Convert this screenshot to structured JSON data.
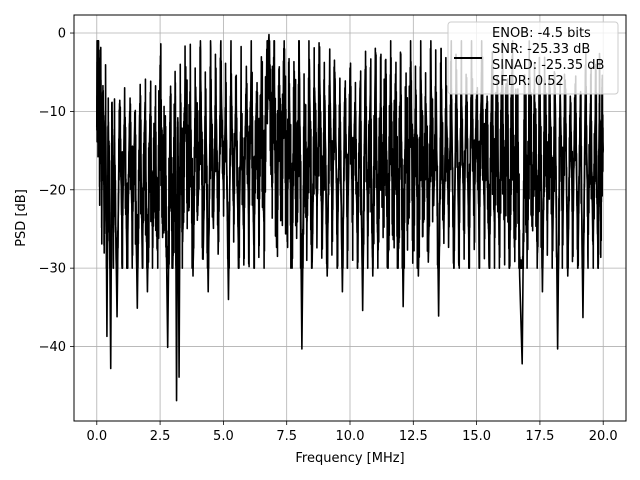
{
  "chart_data": {
    "type": "line",
    "xlabel": "Frequency [MHz]",
    "ylabel": "PSD [dB]",
    "xlim": [
      -0.9,
      20.9
    ],
    "ylim": [
      -49.5,
      2.3
    ],
    "xticks": [
      0.0,
      2.5,
      5.0,
      7.5,
      10.0,
      12.5,
      15.0,
      17.5,
      20.0
    ],
    "xtick_labels": [
      "0.0",
      "2.5",
      "5.0",
      "7.5",
      "10.0",
      "12.5",
      "15.0",
      "17.5",
      "20.0"
    ],
    "yticks": [
      0,
      -10,
      -20,
      -30,
      -40
    ],
    "ytick_labels": [
      "0",
      "−10",
      "−20",
      "−30",
      "−40"
    ],
    "grid": true,
    "legend_placement": "top-right",
    "series": [
      {
        "color": "#000000",
        "description": "dense noisy power spectral density trace, roughly -8 to -25 dB with deep dips",
        "points": [
          [
            0.0,
            -12
          ],
          [
            0.02,
            -1
          ],
          [
            0.05,
            -8
          ],
          [
            0.08,
            -4
          ],
          [
            0.12,
            -15
          ],
          [
            0.16,
            -6
          ],
          [
            0.2,
            -20
          ],
          [
            0.25,
            -8
          ],
          [
            0.3,
            -24
          ],
          [
            0.35,
            -10
          ],
          [
            0.4,
            -38.7
          ],
          [
            0.45,
            -12
          ],
          [
            0.5,
            -22
          ],
          [
            0.55,
            -42.8
          ],
          [
            0.6,
            -10
          ],
          [
            0.65,
            -26
          ],
          [
            0.7,
            -14
          ],
          [
            0.8,
            -36.2
          ],
          [
            0.9,
            -9
          ],
          [
            1.0,
            -25
          ],
          [
            1.1,
            -11
          ],
          [
            1.2,
            -30
          ],
          [
            1.3,
            -10
          ],
          [
            1.4,
            -24
          ],
          [
            1.5,
            -12
          ],
          [
            1.6,
            -35.1
          ],
          [
            1.7,
            -9
          ],
          [
            1.8,
            -28
          ],
          [
            1.9,
            -10
          ],
          [
            2.0,
            -33
          ],
          [
            2.1,
            -11
          ],
          [
            2.2,
            -24
          ],
          [
            2.3,
            -13
          ],
          [
            2.4,
            -27
          ],
          [
            2.5,
            -6
          ],
          [
            2.6,
            -22
          ],
          [
            2.7,
            -14
          ],
          [
            2.8,
            -40.1
          ],
          [
            2.9,
            -10
          ],
          [
            3.0,
            -30
          ],
          [
            3.1,
            -8
          ],
          [
            3.15,
            -46.9
          ],
          [
            3.2,
            -12
          ],
          [
            3.25,
            -43.9
          ],
          [
            3.3,
            -9
          ],
          [
            3.4,
            -25
          ],
          [
            3.5,
            -5
          ],
          [
            3.6,
            -21
          ],
          [
            3.7,
            -10
          ],
          [
            3.8,
            -31
          ],
          [
            3.9,
            -7
          ],
          [
            4.0,
            -22
          ],
          [
            4.1,
            -5
          ],
          [
            4.2,
            -28
          ],
          [
            4.3,
            -9
          ],
          [
            4.4,
            -33
          ],
          [
            4.5,
            -6
          ],
          [
            4.6,
            -24
          ],
          [
            4.7,
            -8
          ],
          [
            4.8,
            -26
          ],
          [
            4.9,
            -5
          ],
          [
            5.0,
            -20
          ],
          [
            5.1,
            -9
          ],
          [
            5.2,
            -34
          ],
          [
            5.3,
            -6
          ],
          [
            5.4,
            -22
          ],
          [
            5.5,
            -8
          ],
          [
            5.6,
            -29
          ],
          [
            5.7,
            -10
          ],
          [
            5.8,
            -25
          ],
          [
            5.9,
            -7
          ],
          [
            6.0,
            -23
          ],
          [
            6.1,
            -5
          ],
          [
            6.2,
            -27
          ],
          [
            6.3,
            -9
          ],
          [
            6.4,
            -21
          ],
          [
            6.5,
            -7
          ],
          [
            6.6,
            -24
          ],
          [
            6.7,
            -6
          ],
          [
            6.8,
            -0.2
          ],
          [
            6.9,
            -18
          ],
          [
            7.0,
            -5
          ],
          [
            7.1,
            -26
          ],
          [
            7.2,
            -8
          ],
          [
            7.3,
            -21
          ],
          [
            7.4,
            -4
          ],
          [
            7.5,
            -25
          ],
          [
            7.6,
            -8
          ],
          [
            7.7,
            -29
          ],
          [
            7.8,
            -7
          ],
          [
            7.9,
            -23
          ],
          [
            8.0,
            -5
          ],
          [
            8.1,
            -40.3
          ],
          [
            8.2,
            -9
          ],
          [
            8.3,
            -24
          ],
          [
            8.4,
            -6
          ],
          [
            8.5,
            -30
          ],
          [
            8.6,
            -7
          ],
          [
            8.7,
            -22
          ],
          [
            8.8,
            -5
          ],
          [
            8.9,
            -26
          ],
          [
            9.0,
            -8
          ],
          [
            9.1,
            -31
          ],
          [
            9.2,
            -6
          ],
          [
            9.3,
            -24
          ],
          [
            9.4,
            -5
          ],
          [
            9.5,
            -27
          ],
          [
            9.6,
            -9
          ],
          [
            9.7,
            -33
          ],
          [
            9.8,
            -7
          ],
          [
            9.9,
            -25
          ],
          [
            10.0,
            -6
          ],
          [
            10.1,
            -22
          ],
          [
            10.2,
            -9
          ],
          [
            10.3,
            -28
          ],
          [
            10.4,
            -7
          ],
          [
            10.5,
            -35.4
          ],
          [
            10.6,
            -6
          ],
          [
            10.7,
            -24
          ],
          [
            10.8,
            -8
          ],
          [
            10.9,
            -31
          ],
          [
            11.0,
            -5
          ],
          [
            11.1,
            -27
          ],
          [
            11.2,
            -9
          ],
          [
            11.3,
            -22
          ],
          [
            11.4,
            -7
          ],
          [
            11.5,
            -30
          ],
          [
            11.6,
            -6
          ],
          [
            11.7,
            -25
          ],
          [
            11.8,
            -8
          ],
          [
            11.9,
            -29
          ],
          [
            12.0,
            -6
          ],
          [
            12.1,
            -34.9
          ],
          [
            12.2,
            -9
          ],
          [
            12.3,
            -23
          ],
          [
            12.4,
            -5
          ],
          [
            12.5,
            -27
          ],
          [
            12.6,
            -8
          ],
          [
            12.7,
            -31
          ],
          [
            12.8,
            -6
          ],
          [
            12.9,
            -24
          ],
          [
            13.0,
            -9
          ],
          [
            13.1,
            -28
          ],
          [
            13.2,
            -6
          ],
          [
            13.3,
            -22
          ],
          [
            13.4,
            -8
          ],
          [
            13.5,
            -36.1
          ],
          [
            13.6,
            -6
          ],
          [
            13.7,
            -25
          ],
          [
            13.8,
            -9
          ],
          [
            13.9,
            -23
          ],
          [
            14.0,
            -7
          ],
          [
            14.1,
            -30
          ],
          [
            14.2,
            -6
          ],
          [
            14.3,
            -26
          ],
          [
            14.4,
            -8
          ],
          [
            14.5,
            -24
          ],
          [
            14.6,
            -7
          ],
          [
            14.7,
            -28
          ],
          [
            14.8,
            -5
          ],
          [
            14.9,
            -23
          ],
          [
            15.0,
            -8
          ],
          [
            15.1,
            -25
          ],
          [
            15.2,
            -5
          ],
          [
            15.3,
            -22
          ],
          [
            15.4,
            -9
          ],
          [
            15.5,
            -30
          ],
          [
            15.6,
            -6
          ],
          [
            15.7,
            -24
          ],
          [
            15.8,
            -8
          ],
          [
            15.9,
            -27
          ],
          [
            16.0,
            -6
          ],
          [
            16.1,
            -23
          ],
          [
            16.2,
            -8
          ],
          [
            16.3,
            -29
          ],
          [
            16.4,
            -5
          ],
          [
            16.5,
            -25
          ],
          [
            16.6,
            -9
          ],
          [
            16.7,
            -31
          ],
          [
            16.8,
            -42.2
          ],
          [
            16.9,
            -8
          ],
          [
            17.0,
            -26
          ],
          [
            17.1,
            -6
          ],
          [
            17.2,
            -24
          ],
          [
            17.3,
            -9
          ],
          [
            17.4,
            -28
          ],
          [
            17.5,
            -7
          ],
          [
            17.6,
            -33
          ],
          [
            17.7,
            -6
          ],
          [
            17.8,
            -23
          ],
          [
            17.9,
            -9
          ],
          [
            18.0,
            -27
          ],
          [
            18.1,
            -7
          ],
          [
            18.2,
            -40.3
          ],
          [
            18.3,
            -8
          ],
          [
            18.4,
            -25
          ],
          [
            18.5,
            -6
          ],
          [
            18.6,
            -31
          ],
          [
            18.7,
            -9
          ],
          [
            18.8,
            -24
          ],
          [
            18.9,
            -7
          ],
          [
            19.0,
            -29
          ],
          [
            19.1,
            -8
          ],
          [
            19.2,
            -36.3
          ],
          [
            19.3,
            -6
          ],
          [
            19.4,
            -25
          ],
          [
            19.5,
            -9
          ],
          [
            19.6,
            -27
          ],
          [
            19.7,
            -8
          ],
          [
            19.8,
            -30
          ],
          [
            19.85,
            -9
          ],
          [
            19.9,
            -24
          ],
          [
            19.95,
            -12
          ],
          [
            20.0,
            -15
          ]
        ]
      }
    ],
    "legend": {
      "lines": [
        "ENOB: -4.5 bits",
        "SNR: -25.33 dB",
        "SINAD: -25.35 dB",
        "SFDR: 0.52"
      ]
    }
  }
}
